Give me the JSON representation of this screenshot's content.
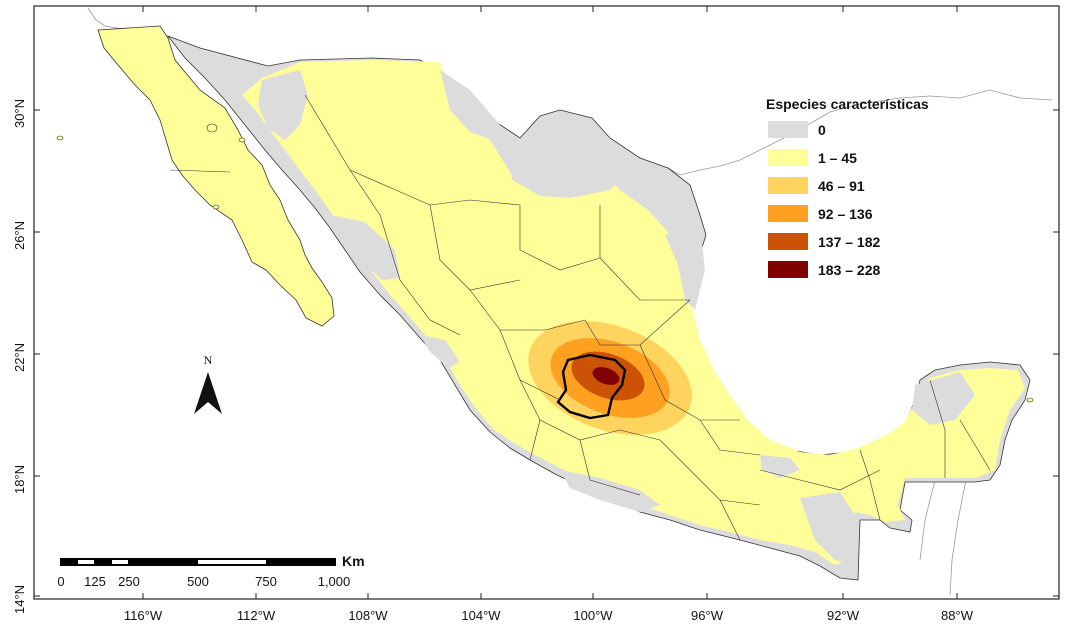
{
  "map": {
    "latitude_labels": [
      "30°N",
      "26°N",
      "22°N",
      "18°N",
      "14°N"
    ],
    "longitude_labels": [
      "116°W",
      "112°W",
      "108°W",
      "104°W",
      "100°W",
      "96°W",
      "92°W",
      "88°W"
    ],
    "north_arrow": {
      "letter": "N",
      "icon": "north-arrow-icon"
    },
    "scale_bar": {
      "unit": "Km",
      "ticks": [
        "0",
        "125",
        "250",
        "500",
        "750",
        "1,000"
      ]
    },
    "legend": {
      "title": "Especies características",
      "classes": [
        {
          "label": "0",
          "color": "#dcdcdc"
        },
        {
          "label": "1 – 45",
          "color": "#ffff99"
        },
        {
          "label": "46 – 91",
          "color": "#fed45e"
        },
        {
          "label": "92 – 136",
          "color": "#fea020"
        },
        {
          "label": "137 – 182",
          "color": "#cc5206"
        },
        {
          "label": "183 – 228",
          "color": "#800000"
        }
      ]
    }
  }
}
